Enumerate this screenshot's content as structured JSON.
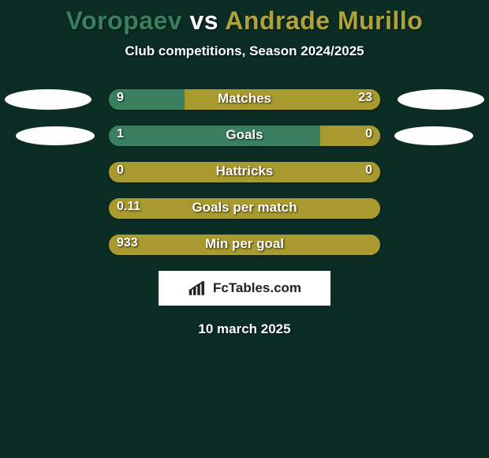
{
  "background_color": "#0b2d24",
  "title": {
    "player1": "Voropaev",
    "vs": "vs",
    "player2": "Andrade Murillo",
    "player1_color": "#3a7f5f",
    "vs_color": "#ffffff",
    "player2_color": "#b0a23a",
    "fontsize": 32
  },
  "subtitle": {
    "text": "Club competitions, Season 2024/2025",
    "fontsize": 17,
    "color": "#ffffff"
  },
  "bar_colors": {
    "left": "#3a7f5f",
    "right": "#a99a2f",
    "track": "#a99a2f"
  },
  "rows": [
    {
      "label": "Matches",
      "left_val": "9",
      "right_val": "23",
      "left_pct": 28,
      "right_pct": 72,
      "show_left_ellipse": true,
      "show_right_ellipse": true
    },
    {
      "label": "Goals",
      "left_val": "1",
      "right_val": "0",
      "left_pct": 78,
      "right_pct": 22,
      "show_left_ellipse": true,
      "show_right_ellipse": true
    },
    {
      "label": "Hattricks",
      "left_val": "0",
      "right_val": "0",
      "left_pct": 0,
      "right_pct": 100,
      "show_left_ellipse": false,
      "show_right_ellipse": false
    },
    {
      "label": "Goals per match",
      "left_val": "0.11",
      "right_val": "",
      "left_pct": 0,
      "right_pct": 100,
      "show_left_ellipse": false,
      "show_right_ellipse": false
    },
    {
      "label": "Min per goal",
      "left_val": "933",
      "right_val": "",
      "left_pct": 0,
      "right_pct": 100,
      "show_left_ellipse": false,
      "show_right_ellipse": false
    }
  ],
  "attribution": {
    "text": "FcTables.com"
  },
  "date": {
    "text": "10 march 2025",
    "fontsize": 17,
    "color": "#ffffff"
  }
}
